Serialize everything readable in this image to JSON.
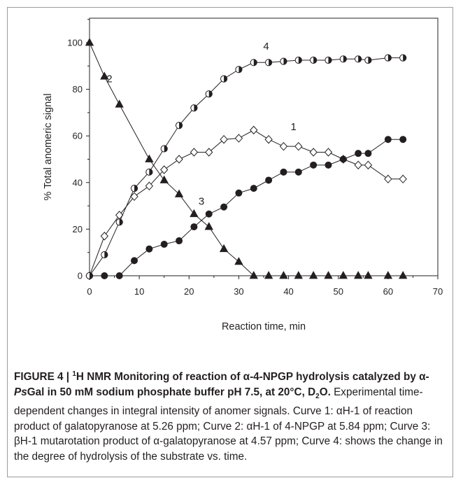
{
  "chart_data": {
    "type": "line",
    "xlabel": "Reaction time, min",
    "ylabel": "% Total anomeric signal",
    "xlim": [
      0,
      70
    ],
    "ylim": [
      0,
      100
    ],
    "x_ticks": [
      "0",
      "10",
      "20",
      "30",
      "40",
      "50",
      "60",
      "70"
    ],
    "y_ticks": [
      "0",
      "20",
      "40",
      "60",
      "80",
      "100"
    ],
    "grid": false,
    "series": [
      {
        "name": "1",
        "marker": "open-diamond",
        "x": [
          0,
          3,
          6,
          9,
          12,
          15,
          18,
          21,
          24,
          27,
          30,
          33,
          36,
          39,
          42,
          45,
          48,
          51,
          54,
          56,
          60,
          63
        ],
        "y": [
          0,
          17,
          26,
          34,
          38.5,
          45.5,
          50,
          53,
          53,
          58.5,
          59,
          62.5,
          58.5,
          55.5,
          55.5,
          53,
          53,
          50,
          47.5,
          47.5,
          41.5,
          41.5
        ]
      },
      {
        "name": "2",
        "marker": "filled-triangle",
        "x": [
          0,
          3,
          6,
          12,
          15,
          18,
          21,
          24,
          27,
          30,
          33,
          36,
          39,
          42,
          45,
          48,
          51,
          54,
          56,
          60,
          63
        ],
        "y": [
          100,
          85.5,
          73.5,
          50,
          41,
          35,
          26.5,
          21,
          11.5,
          6,
          0,
          0,
          0,
          0,
          0,
          0,
          0,
          0,
          0,
          0,
          0
        ]
      },
      {
        "name": "3",
        "marker": "filled-circle",
        "x": [
          0,
          3,
          6,
          9,
          12,
          15,
          18,
          21,
          24,
          27,
          30,
          33,
          36,
          39,
          42,
          45,
          48,
          51,
          54,
          56,
          60,
          63
        ],
        "y": [
          0,
          0,
          0,
          6.5,
          11.5,
          13.5,
          15,
          21,
          26.5,
          29.5,
          35.5,
          37.5,
          41,
          44.5,
          44.5,
          47.5,
          47.5,
          50,
          52.5,
          52.5,
          58.5,
          58.5
        ]
      },
      {
        "name": "4",
        "marker": "half-filled-circle",
        "x": [
          0,
          3,
          6,
          9,
          12,
          15,
          18,
          21,
          24,
          27,
          30,
          33,
          36,
          39,
          42,
          45,
          48,
          51,
          54,
          56,
          60,
          63
        ],
        "y": [
          0,
          9,
          23,
          37.5,
          44.5,
          54.5,
          64.5,
          72,
          78,
          84.5,
          88.5,
          91.5,
          91.5,
          92,
          92.5,
          92.5,
          92.5,
          93,
          93,
          92.5,
          93.5,
          93.5
        ]
      }
    ],
    "annotations": [
      {
        "text": "4",
        "x": 35.5,
        "y": 97
      },
      {
        "text": "2",
        "x": 4,
        "y": 83
      },
      {
        "text": "1",
        "x": 41,
        "y": 62.5
      },
      {
        "text": "3",
        "x": 22.5,
        "y": 30.5
      }
    ]
  },
  "caption": {
    "figure_label": "FIGURE 4 |",
    "sup_1": "1",
    "title_a": "H NMR Monitoring of reaction of α-4-NPGP hydrolysis catalyzed by α-",
    "title_italic": "Ps",
    "title_b": "Gal in 50 mM sodium phosphate buffer pH 7.5, at 20°C, D",
    "sub_2": "2",
    "title_c": "O.",
    "body": " Experimental time-dependent changes in integral intensity of anomer signals. Curve 1: αH-1 of reaction product of galatopyranose at 5.26 ppm; Curve 2: αH-1 of 4-NPGP at 5.84 ppm; Curve 3: βH-1 mutarotation product of α-galatopyranose at 4.57 ppm; Curve 4: shows the change in the degree of hydrolysis of the substrate vs. time."
  }
}
